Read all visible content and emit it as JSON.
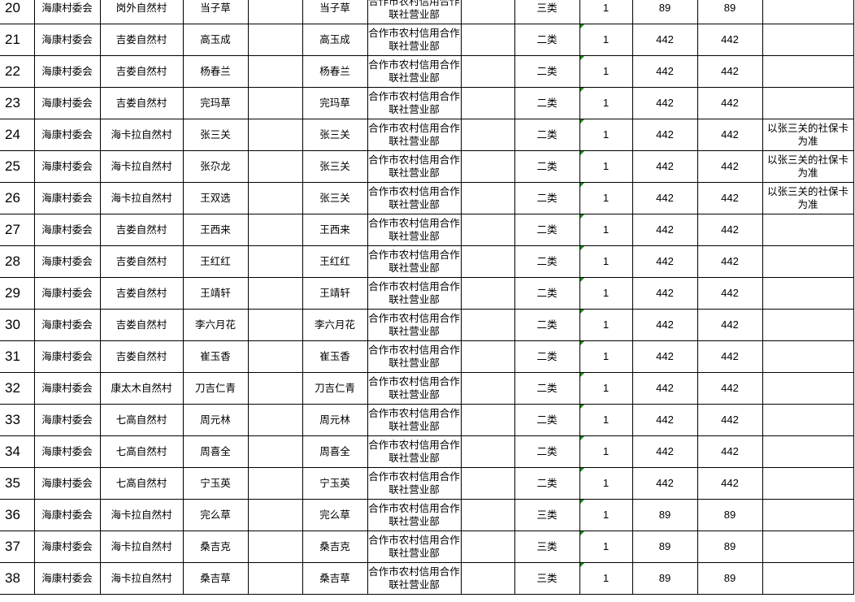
{
  "colors": {
    "grid": "#000000",
    "comment_marker": "#1a8a1a"
  },
  "rows": [
    {
      "no": "20",
      "committee": "海康村委会",
      "village": "岗外自然村",
      "name": "当子草",
      "blank": "",
      "holder": "当子草",
      "bank": "合作市农村信用合作联社营业部",
      "blank2": "",
      "category": "三类",
      "count": "1",
      "amount": "89",
      "total": "89",
      "note": "",
      "marker": false
    },
    {
      "no": "21",
      "committee": "海康村委会",
      "village": "吉娄自然村",
      "name": "高玉成",
      "blank": "",
      "holder": "高玉成",
      "bank": "合作市农村信用合作联社营业部",
      "blank2": "",
      "category": "二类",
      "count": "1",
      "amount": "442",
      "total": "442",
      "note": "",
      "marker": true
    },
    {
      "no": "22",
      "committee": "海康村委会",
      "village": "吉娄自然村",
      "name": "杨春兰",
      "blank": "",
      "holder": "杨春兰",
      "bank": "合作市农村信用合作联社营业部",
      "blank2": "",
      "category": "二类",
      "count": "1",
      "amount": "442",
      "total": "442",
      "note": "",
      "marker": true
    },
    {
      "no": "23",
      "committee": "海康村委会",
      "village": "吉娄自然村",
      "name": "完玛草",
      "blank": "",
      "holder": "完玛草",
      "bank": "合作市农村信用合作联社营业部",
      "blank2": "",
      "category": "二类",
      "count": "1",
      "amount": "442",
      "total": "442",
      "note": "",
      "marker": true
    },
    {
      "no": "24",
      "committee": "海康村委会",
      "village": "海卡拉自然村",
      "name": "张三关",
      "blank": "",
      "holder": "张三关",
      "bank": "合作市农村信用合作联社营业部",
      "blank2": "",
      "category": "二类",
      "count": "1",
      "amount": "442",
      "total": "442",
      "note": "以张三关的社保卡为准",
      "marker": true
    },
    {
      "no": "25",
      "committee": "海康村委会",
      "village": "海卡拉自然村",
      "name": "张尕龙",
      "blank": "",
      "holder": "张三关",
      "bank": "合作市农村信用合作联社营业部",
      "blank2": "",
      "category": "二类",
      "count": "1",
      "amount": "442",
      "total": "442",
      "note": "以张三关的社保卡为准",
      "marker": true
    },
    {
      "no": "26",
      "committee": "海康村委会",
      "village": "海卡拉自然村",
      "name": "王双选",
      "blank": "",
      "holder": "张三关",
      "bank": "合作市农村信用合作联社营业部",
      "blank2": "",
      "category": "二类",
      "count": "1",
      "amount": "442",
      "total": "442",
      "note": "以张三关的社保卡为准",
      "marker": true
    },
    {
      "no": "27",
      "committee": "海康村委会",
      "village": "吉娄自然村",
      "name": "王西来",
      "blank": "",
      "holder": "王西来",
      "bank": "合作市农村信用合作联社营业部",
      "blank2": "",
      "category": "二类",
      "count": "1",
      "amount": "442",
      "total": "442",
      "note": "",
      "marker": true
    },
    {
      "no": "28",
      "committee": "海康村委会",
      "village": "吉娄自然村",
      "name": "王红红",
      "blank": "",
      "holder": "王红红",
      "bank": "合作市农村信用合作联社营业部",
      "blank2": "",
      "category": "二类",
      "count": "1",
      "amount": "442",
      "total": "442",
      "note": "",
      "marker": true
    },
    {
      "no": "29",
      "committee": "海康村委会",
      "village": "吉娄自然村",
      "name": "王靖轩",
      "blank": "",
      "holder": "王靖轩",
      "bank": "合作市农村信用合作联社营业部",
      "blank2": "",
      "category": "二类",
      "count": "1",
      "amount": "442",
      "total": "442",
      "note": "",
      "marker": true
    },
    {
      "no": "30",
      "committee": "海康村委会",
      "village": "吉娄自然村",
      "name": "李六月花",
      "blank": "",
      "holder": "李六月花",
      "bank": "合作市农村信用合作联社营业部",
      "blank2": "",
      "category": "二类",
      "count": "1",
      "amount": "442",
      "total": "442",
      "note": "",
      "marker": true
    },
    {
      "no": "31",
      "committee": "海康村委会",
      "village": "吉娄自然村",
      "name": "崔玉香",
      "blank": "",
      "holder": "崔玉香",
      "bank": "合作市农村信用合作联社营业部",
      "blank2": "",
      "category": "二类",
      "count": "1",
      "amount": "442",
      "total": "442",
      "note": "",
      "marker": true
    },
    {
      "no": "32",
      "committee": "海康村委会",
      "village": "康太木自然村",
      "name": "刀吉仁青",
      "blank": "",
      "holder": "刀吉仁青",
      "bank": "合作市农村信用合作联社营业部",
      "blank2": "",
      "category": "二类",
      "count": "1",
      "amount": "442",
      "total": "442",
      "note": "",
      "marker": true
    },
    {
      "no": "33",
      "committee": "海康村委会",
      "village": "七高自然村",
      "name": "周元林",
      "blank": "",
      "holder": "周元林",
      "bank": "合作市农村信用合作联社营业部",
      "blank2": "",
      "category": "二类",
      "count": "1",
      "amount": "442",
      "total": "442",
      "note": "",
      "marker": true
    },
    {
      "no": "34",
      "committee": "海康村委会",
      "village": "七高自然村",
      "name": "周喜全",
      "blank": "",
      "holder": "周喜全",
      "bank": "合作市农村信用合作联社营业部",
      "blank2": "",
      "category": "二类",
      "count": "1",
      "amount": "442",
      "total": "442",
      "note": "",
      "marker": true
    },
    {
      "no": "35",
      "committee": "海康村委会",
      "village": "七高自然村",
      "name": "宁玉英",
      "blank": "",
      "holder": "宁玉英",
      "bank": "合作市农村信用合作联社营业部",
      "blank2": "",
      "category": "二类",
      "count": "1",
      "amount": "442",
      "total": "442",
      "note": "",
      "marker": true
    },
    {
      "no": "36",
      "committee": "海康村委会",
      "village": "海卡拉自然村",
      "name": "完么草",
      "blank": "",
      "holder": "完么草",
      "bank": "合作市农村信用合作联社营业部",
      "blank2": "",
      "category": "三类",
      "count": "1",
      "amount": "89",
      "total": "89",
      "note": "",
      "marker": true
    },
    {
      "no": "37",
      "committee": "海康村委会",
      "village": "海卡拉自然村",
      "name": "桑吉克",
      "blank": "",
      "holder": "桑吉克",
      "bank": "合作市农村信用合作联社营业部",
      "blank2": "",
      "category": "三类",
      "count": "1",
      "amount": "89",
      "total": "89",
      "note": "",
      "marker": true
    },
    {
      "no": "38",
      "committee": "海康村委会",
      "village": "海卡拉自然村",
      "name": "桑吉草",
      "blank": "",
      "holder": "桑吉草",
      "bank": "合作市农村信用合作联社营业部",
      "blank2": "",
      "category": "三类",
      "count": "1",
      "amount": "89",
      "total": "89",
      "note": "",
      "marker": true
    }
  ]
}
